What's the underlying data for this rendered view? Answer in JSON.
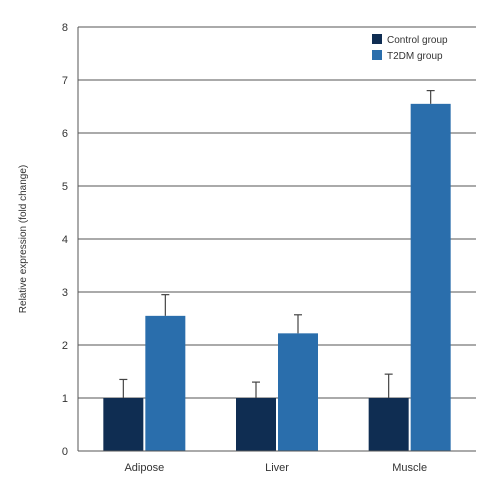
{
  "chart_data": {
    "type": "bar",
    "title": "",
    "xlabel": "",
    "ylabel": "Relative expression (fold change)",
    "ylim": [
      0,
      8
    ],
    "yticks": [
      "0",
      "1",
      "2",
      "3",
      "4",
      "5",
      "6",
      "7",
      "8"
    ],
    "grid": "horizontal",
    "legend_position": "top-right",
    "categories": [
      "Adipose",
      "Liver",
      "Muscle"
    ],
    "series": [
      {
        "name": "Control group",
        "color": "#0f2d52",
        "values": [
          1.0,
          1.0,
          1.0
        ],
        "errors": [
          0.35,
          0.3,
          0.45
        ]
      },
      {
        "name": "T2DM group",
        "color": "#2a6eac",
        "values": [
          2.55,
          2.22,
          6.55
        ],
        "errors": [
          0.4,
          0.35,
          0.25
        ]
      }
    ]
  }
}
